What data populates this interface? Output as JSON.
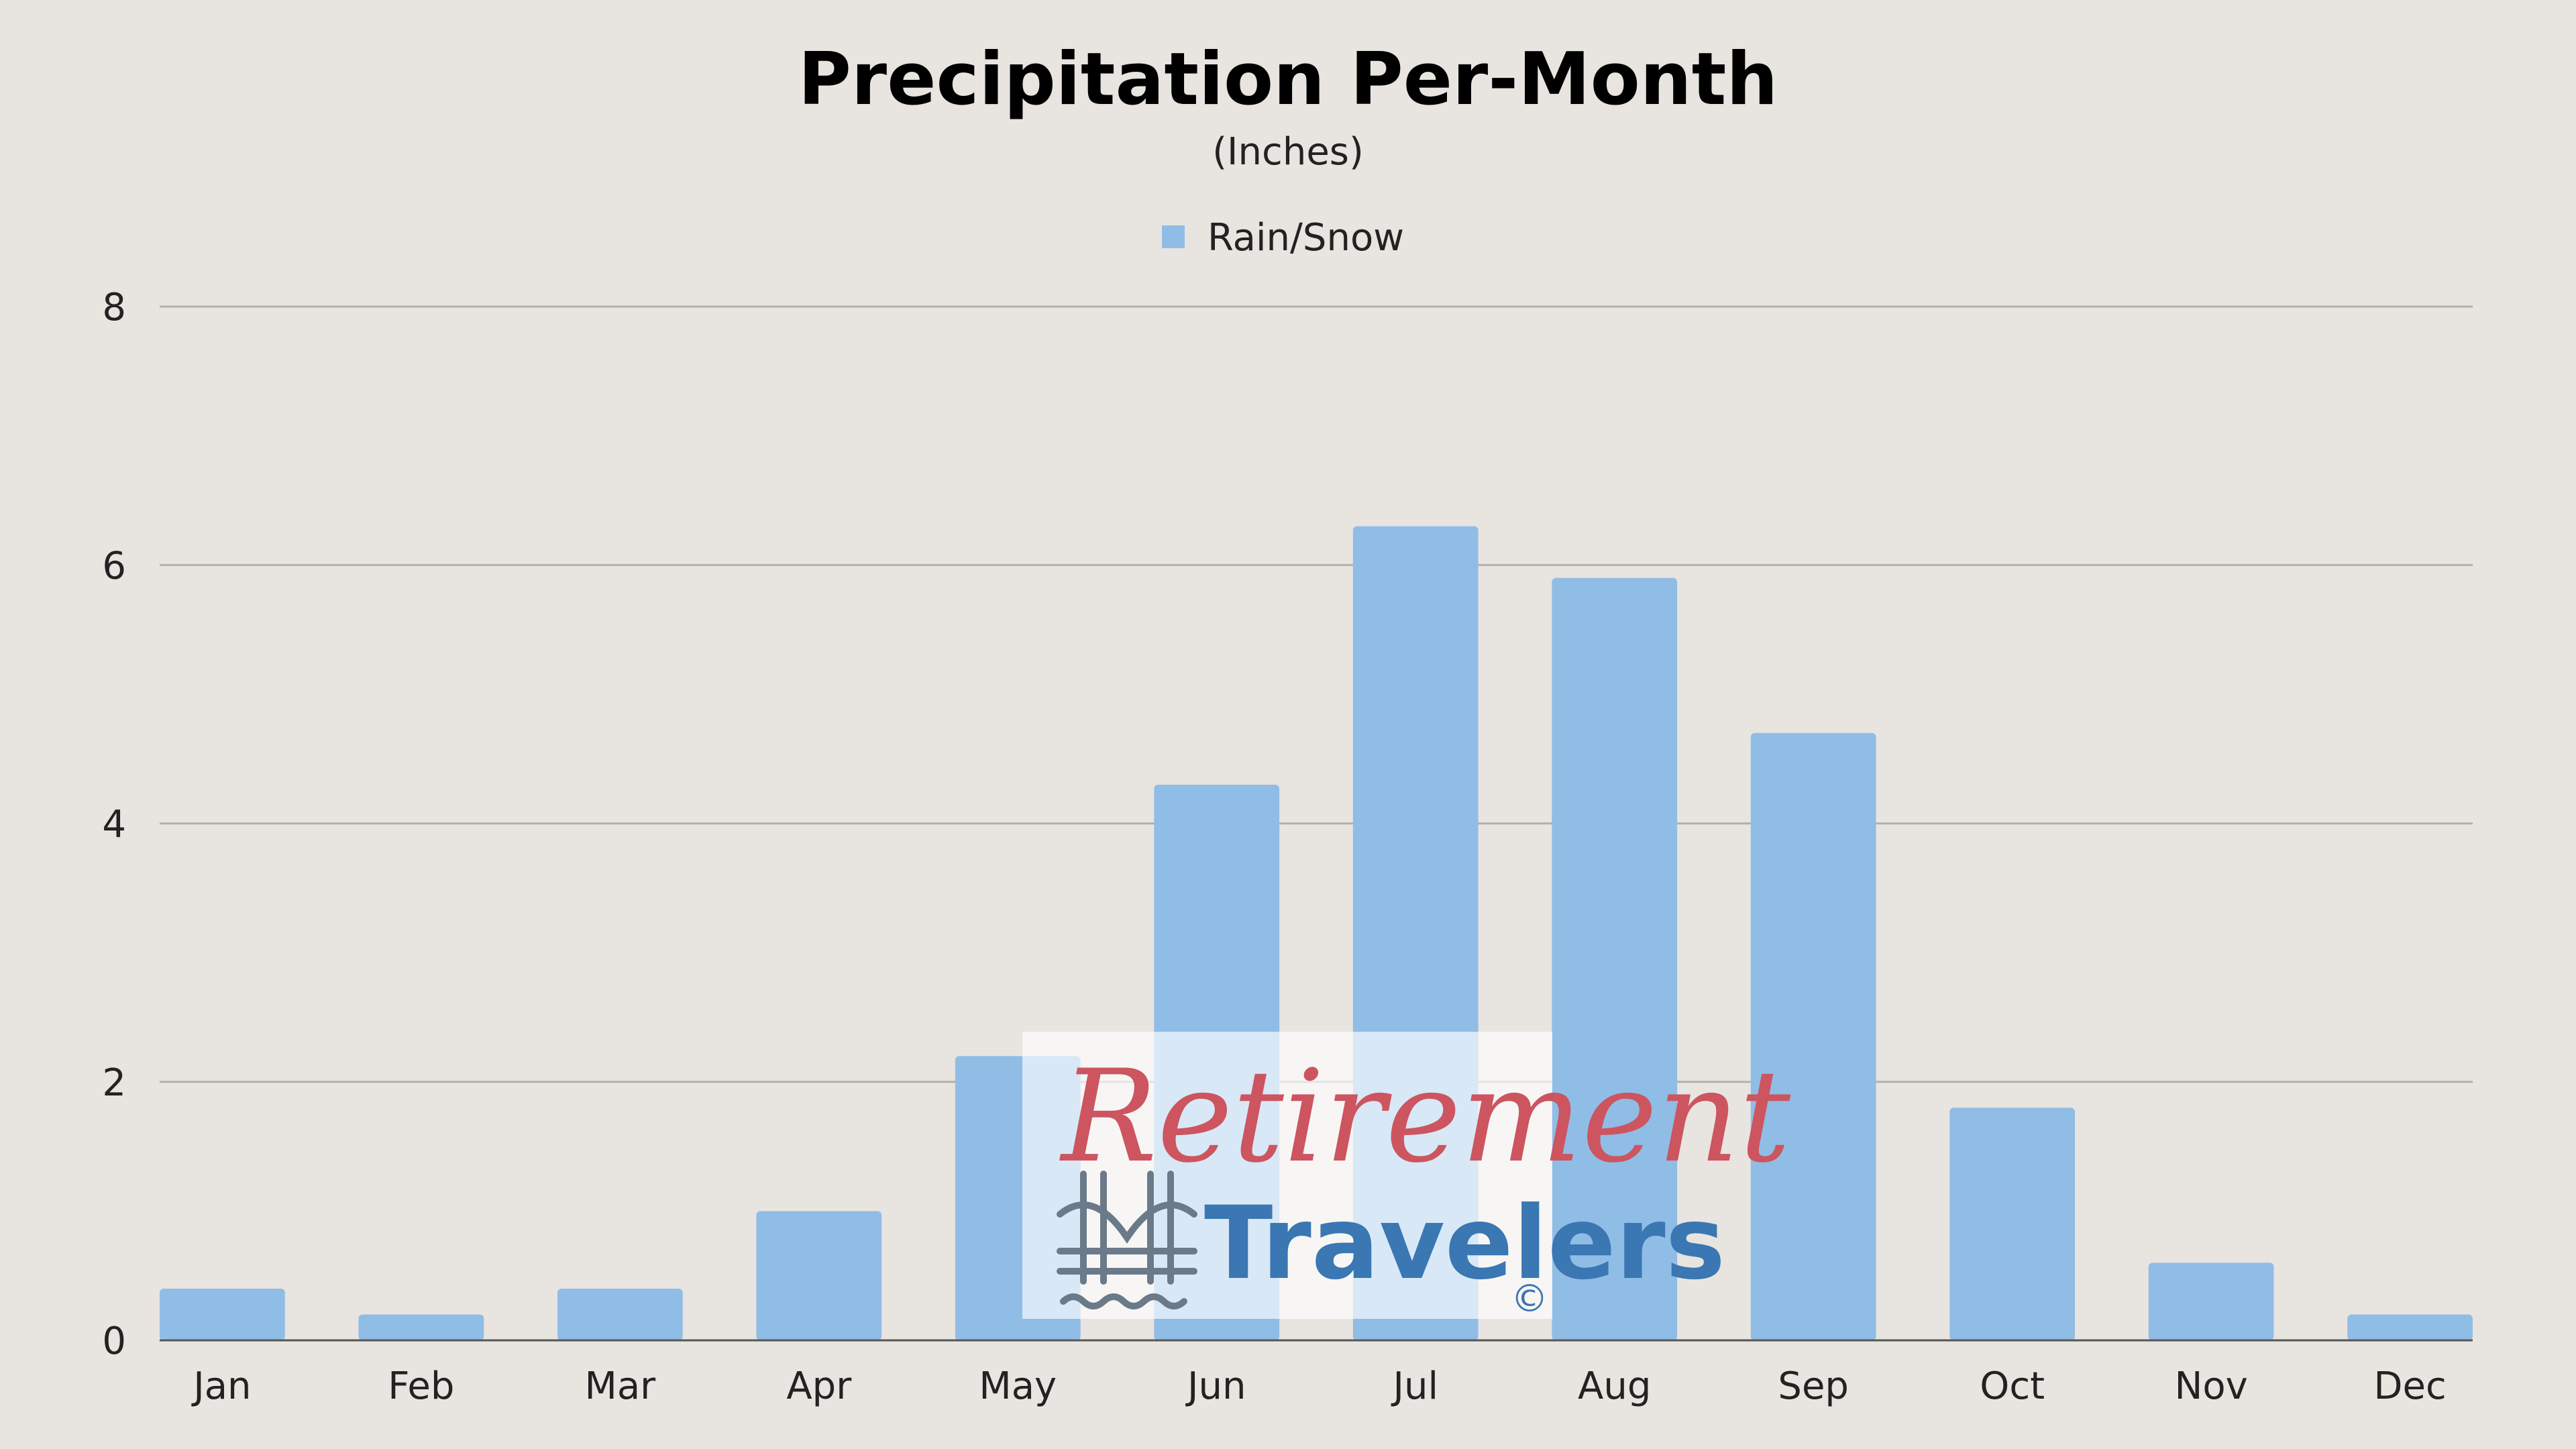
{
  "chart_data": {
    "type": "bar",
    "title": "Precipitation Per-Month",
    "subtitle": "(Inches)",
    "categories": [
      "Jan",
      "Feb",
      "Mar",
      "Apr",
      "May",
      "Jun",
      "Jul",
      "Aug",
      "Sep",
      "Oct",
      "Nov",
      "Dec"
    ],
    "series": [
      {
        "name": "Rain/Snow",
        "values": [
          0.4,
          0.2,
          0.4,
          1.0,
          2.2,
          4.3,
          6.3,
          5.9,
          4.7,
          1.8,
          0.6,
          0.2
        ]
      }
    ],
    "ylim": [
      0,
      8
    ],
    "yticks": [
      0,
      2,
      4,
      6,
      8
    ],
    "grid": true,
    "legend": "top-center",
    "colors": {
      "bar": "#90bde6",
      "background": "#e8e4df"
    }
  },
  "watermark": {
    "line1": "Retirement",
    "line2": "Travelers",
    "copyright": "©",
    "icon": "bridge-icon"
  }
}
